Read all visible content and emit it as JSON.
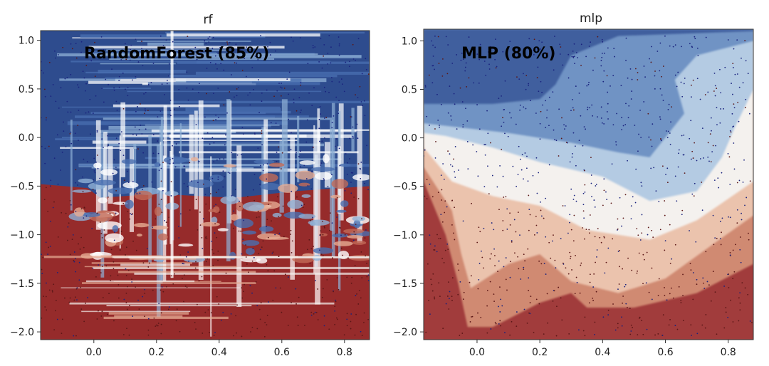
{
  "chart_data": [
    {
      "type": "heatmap",
      "subtype": "decision-boundary-contour-with-scatter",
      "title": "rf",
      "annotation": "RandomForest (85%)",
      "model": "RandomForest",
      "accuracy_percent": 85,
      "xlim": [
        -0.17,
        0.88
      ],
      "ylim": [
        -2.08,
        1.1
      ],
      "xticks": [
        0.0,
        0.2,
        0.4,
        0.6,
        0.8
      ],
      "xtick_labels": [
        "0.0",
        "0.2",
        "0.4",
        "0.6",
        "0.8"
      ],
      "yticks": [
        1.0,
        0.5,
        0.0,
        -0.5,
        -1.0,
        -1.5,
        -2.0
      ],
      "ytick_labels": [
        "1.0",
        "0.5",
        "0.0",
        "−0.5",
        "−1.0",
        "−1.5",
        "−2.0"
      ],
      "colormap": [
        "#2e4c8e",
        "#4a6fb0",
        "#8fb0d6",
        "#f4f1ee",
        "#e6ad94",
        "#c26a58",
        "#962b2b"
      ],
      "boundary_y": -0.6,
      "point_colors": [
        "#1a237e",
        "#5b1717"
      ]
    },
    {
      "type": "heatmap",
      "subtype": "decision-boundary-contour-with-scatter",
      "title": "mlp",
      "annotation": "MLP (80%)",
      "model": "MLP",
      "accuracy_percent": 80,
      "xlim": [
        -0.17,
        0.88
      ],
      "ylim": [
        -2.08,
        1.12
      ],
      "xticks": [
        0.0,
        0.2,
        0.4,
        0.6,
        0.8
      ],
      "xtick_labels": [
        "0.0",
        "0.2",
        "0.4",
        "0.6",
        "0.8"
      ],
      "yticks": [
        1.0,
        0.5,
        0.0,
        -0.5,
        -1.0,
        -1.5,
        -2.0
      ],
      "ytick_labels": [
        "1.0",
        "0.5",
        "0.0",
        "−0.5",
        "−1.0",
        "−1.5",
        "−2.0"
      ],
      "colormap": [
        "#3f5f9e",
        "#6f93c4",
        "#b4cbe3",
        "#f4f1ee",
        "#ebc3ad",
        "#d08a72",
        "#a13c3c"
      ],
      "point_colors": [
        "#1a237e",
        "#5b1717"
      ]
    }
  ]
}
